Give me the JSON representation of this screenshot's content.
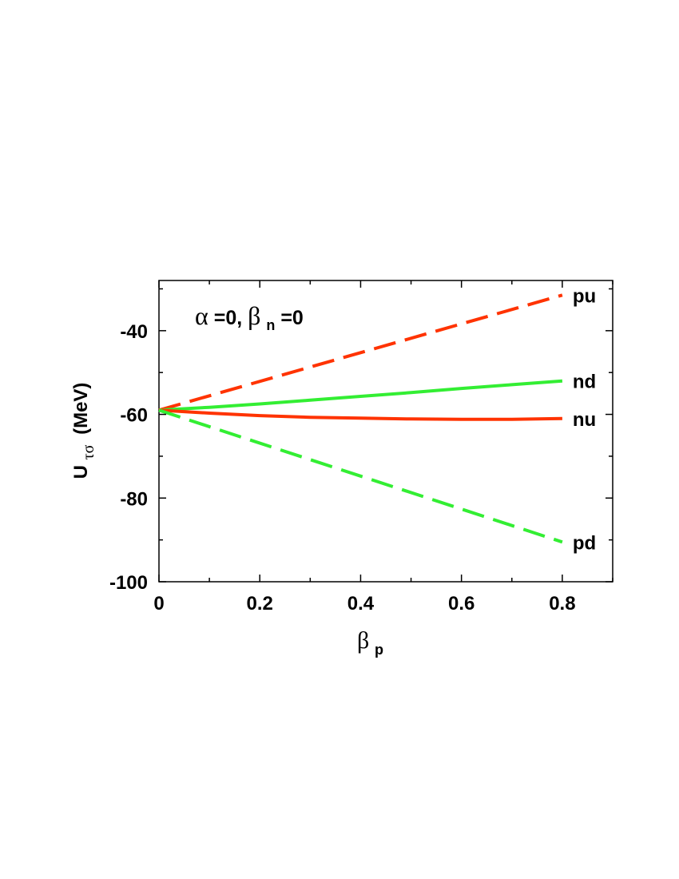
{
  "chart_data": {
    "type": "line",
    "xlim": [
      0,
      0.9
    ],
    "ylim": [
      -100,
      -28
    ],
    "xticks": [
      0,
      0.2,
      0.4,
      0.6,
      0.8
    ],
    "yticks": [
      -100,
      -80,
      -60,
      -40
    ],
    "xtick_labels": [
      "0",
      "0.2",
      "0.4",
      "0.6",
      "0.8"
    ],
    "ytick_labels": [
      "-100",
      "-80",
      "-60",
      "-40"
    ],
    "grid": false,
    "xlabel": {
      "greek": "β",
      "sub": "p"
    },
    "ylabel": {
      "main": "U",
      "sub": "τσ",
      "unit": "(MeV)"
    },
    "annotation": {
      "alpha_symbol": "α",
      "alpha_value": "=0, ",
      "beta_symbol": "β",
      "beta_sub": "n",
      "beta_value": "=0"
    },
    "series": [
      {
        "name": "pu",
        "style": "dashed",
        "color": "#ff3300",
        "x": [
          0,
          0.8
        ],
        "y": [
          -59,
          -31.5
        ]
      },
      {
        "name": "nd",
        "style": "solid",
        "color": "#33ee33",
        "x": [
          0,
          0.1,
          0.2,
          0.3,
          0.4,
          0.5,
          0.6,
          0.7,
          0.8
        ],
        "y": [
          -59,
          -58.3,
          -57.5,
          -56.6,
          -55.7,
          -54.8,
          -53.8,
          -52.9,
          -52
        ]
      },
      {
        "name": "nu",
        "style": "solid",
        "color": "#ff3300",
        "x": [
          0,
          0.1,
          0.2,
          0.3,
          0.4,
          0.5,
          0.6,
          0.7,
          0.8
        ],
        "y": [
          -59,
          -59.7,
          -60.3,
          -60.7,
          -60.9,
          -61.1,
          -61.2,
          -61.2,
          -61
        ]
      },
      {
        "name": "pd",
        "style": "dashed",
        "color": "#33ee33",
        "x": [
          0,
          0.8
        ],
        "y": [
          -59,
          -90.5
        ]
      }
    ]
  }
}
